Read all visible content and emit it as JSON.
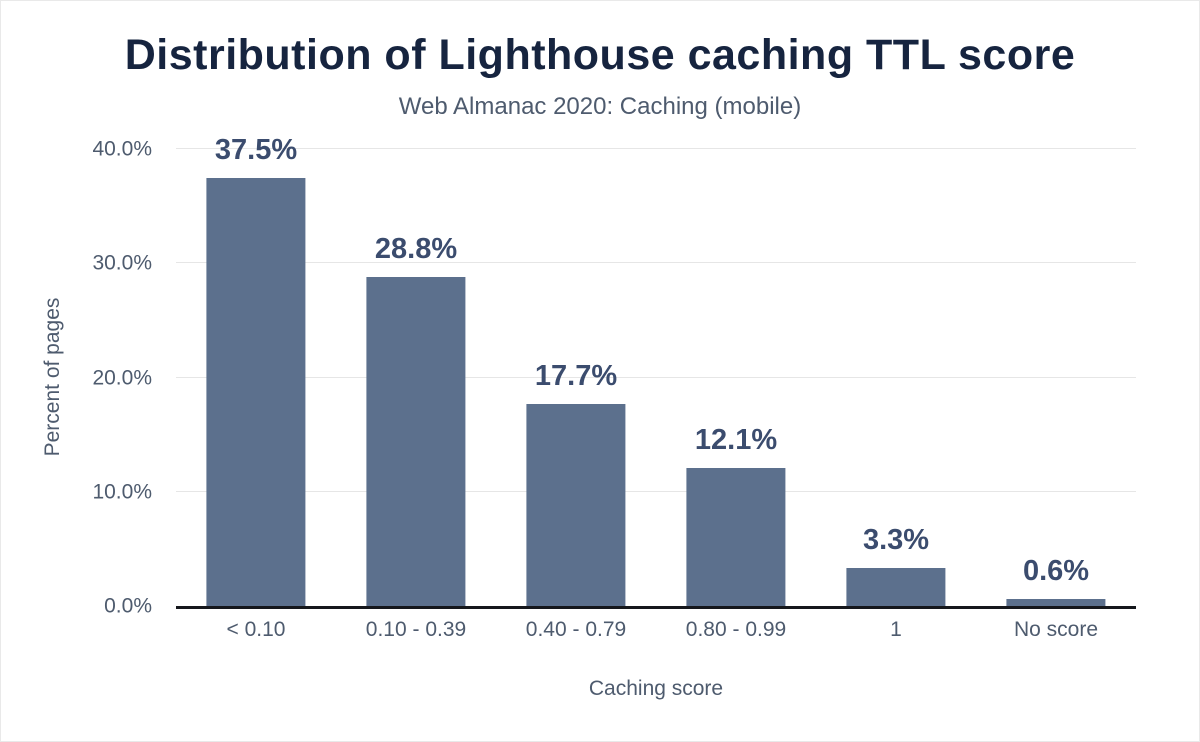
{
  "chart_data": {
    "type": "bar",
    "title": "Distribution of Lighthouse caching TTL score",
    "subtitle": "Web Almanac 2020: Caching (mobile)",
    "categories": [
      "< 0.10",
      "0.10 - 0.39",
      "0.40 - 0.79",
      "0.80 - 0.99",
      "1",
      "No score"
    ],
    "values": [
      37.5,
      28.8,
      17.7,
      12.1,
      3.3,
      0.6
    ],
    "value_labels": [
      "37.5%",
      "28.8%",
      "17.7%",
      "12.1%",
      "3.3%",
      "0.6%"
    ],
    "xlabel": "Caching score",
    "ylabel": "Percent of pages",
    "ylim": [
      0,
      40
    ],
    "yticks": [
      {
        "value": 0,
        "label": "0.0%"
      },
      {
        "value": 10,
        "label": "10.0%"
      },
      {
        "value": 20,
        "label": "20.0%"
      },
      {
        "value": 30,
        "label": "30.0%"
      },
      {
        "value": 40,
        "label": "40.0%"
      }
    ],
    "grid": true,
    "legend": "none",
    "colors": {
      "bar": "#5c708d",
      "title": "#16243f",
      "value_label": "#3b4c6e",
      "axis_label": "#4e5b6e",
      "gridline": "#e6e6e6",
      "baseline": "#15171c",
      "background": "#ffffff"
    }
  }
}
